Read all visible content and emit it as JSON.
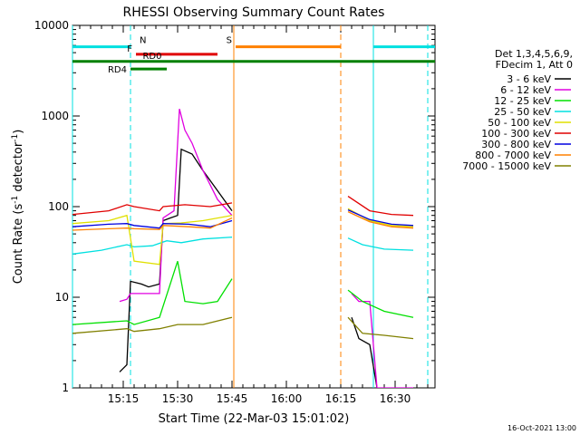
{
  "chart_data": {
    "type": "line",
    "title": "RHESSI Observing Summary Count Rates",
    "xlabel": "Start Time (22-Mar-03 15:01:02)",
    "ylabel_main": "Count Rate (s",
    "ylabel_sup1": "-1",
    "ylabel_mid": " detector",
    "ylabel_sup2": "-1",
    "ylabel_end": ")",
    "yscale": "log",
    "ylim": [
      1,
      10000
    ],
    "xlim_minutes": [
      0,
      100
    ],
    "x_ticks": [
      {
        "label": "15:15",
        "min": 14
      },
      {
        "label": "15:30",
        "min": 29
      },
      {
        "label": "15:45",
        "min": 44
      },
      {
        "label": "16:00",
        "min": 59
      },
      {
        "label": "16:15",
        "min": 74
      },
      {
        "label": "16:30",
        "min": 89
      }
    ],
    "y_ticks": [
      {
        "label": "1",
        "value": 1
      },
      {
        "label": "10",
        "value": 10
      },
      {
        "label": "100",
        "value": 100
      },
      {
        "label": "1000",
        "value": 1000
      },
      {
        "label": "10000",
        "value": 10000
      }
    ],
    "legend_header": [
      "Det 1,3,4,5,6,9,",
      "FDecim 1, Att 0"
    ],
    "legend_placement": "right",
    "series": [
      {
        "name": "3 - 6 keV",
        "color": "#000000",
        "segments": [
          [
            [
              13,
              1.5
            ],
            [
              15,
              1.8
            ],
            [
              16,
              15
            ],
            [
              19,
              14
            ],
            [
              21,
              13
            ],
            [
              24,
              14
            ],
            [
              25,
              70
            ],
            [
              27,
              75
            ],
            [
              29,
              80
            ],
            [
              30,
              430
            ],
            [
              33,
              380
            ],
            [
              36,
              250
            ],
            [
              40,
              150
            ],
            [
              44,
              90
            ]
          ],
          [
            [
              77,
              6
            ],
            [
              79,
              3.5
            ],
            [
              82,
              3
            ],
            [
              84,
              1
            ]
          ]
        ]
      },
      {
        "name": "6 - 12 keV",
        "color": "#e000e0",
        "segments": [
          [
            [
              13,
              9
            ],
            [
              15,
              9.5
            ],
            [
              16,
              11
            ],
            [
              24,
              11
            ],
            [
              25,
              75
            ],
            [
              28,
              90
            ],
            [
              29.5,
              1200
            ],
            [
              31,
              700
            ],
            [
              33,
              500
            ],
            [
              36,
              250
            ],
            [
              40,
              120
            ],
            [
              44,
              80
            ]
          ],
          [
            [
              77,
              11
            ],
            [
              79,
              9
            ],
            [
              82,
              9
            ],
            [
              84,
              1
            ],
            [
              94,
              1
            ]
          ]
        ]
      },
      {
        "name": "12 - 25 keV",
        "color": "#00e000",
        "segments": [
          [
            [
              0,
              5
            ],
            [
              15,
              5.5
            ],
            [
              17,
              5
            ],
            [
              24,
              6
            ],
            [
              29,
              25
            ],
            [
              31,
              9
            ],
            [
              36,
              8.5
            ],
            [
              40,
              9
            ],
            [
              44,
              16
            ]
          ],
          [
            [
              76,
              12
            ],
            [
              80,
              9
            ],
            [
              86,
              7
            ],
            [
              94,
              6
            ]
          ]
        ]
      },
      {
        "name": "25 - 50 keV",
        "color": "#00e0e0",
        "segments": [
          [
            [
              0,
              30
            ],
            [
              8,
              33
            ],
            [
              15,
              38
            ],
            [
              17,
              36
            ],
            [
              22,
              37
            ],
            [
              26,
              42
            ],
            [
              30,
              40
            ],
            [
              36,
              44
            ],
            [
              44,
              46
            ]
          ],
          [
            [
              76,
              45
            ],
            [
              80,
              38
            ],
            [
              86,
              34
            ],
            [
              94,
              33
            ]
          ]
        ]
      },
      {
        "name": "50 - 100 keV",
        "color": "#e0e000",
        "segments": [
          [
            [
              0,
              65
            ],
            [
              10,
              70
            ],
            [
              15,
              80
            ],
            [
              17,
              25
            ],
            [
              24,
              23
            ],
            [
              25,
              65
            ],
            [
              30,
              66
            ],
            [
              36,
              70
            ],
            [
              44,
              80
            ]
          ],
          [
            [
              76,
              95
            ],
            [
              82,
              70
            ],
            [
              88,
              62
            ],
            [
              94,
              60
            ]
          ]
        ]
      },
      {
        "name": "100 - 300 keV",
        "color": "#e00000",
        "segments": [
          [
            [
              0,
              82
            ],
            [
              10,
              90
            ],
            [
              15,
              105
            ],
            [
              17,
              100
            ],
            [
              24,
              90
            ],
            [
              25,
              100
            ],
            [
              31,
              105
            ],
            [
              38,
              100
            ],
            [
              44,
              110
            ]
          ],
          [
            [
              76,
              130
            ],
            [
              82,
              90
            ],
            [
              88,
              82
            ],
            [
              94,
              80
            ]
          ]
        ]
      },
      {
        "name": "300 - 800 keV",
        "color": "#0000e0",
        "segments": [
          [
            [
              0,
              60
            ],
            [
              10,
              64
            ],
            [
              15,
              65
            ],
            [
              17,
              62
            ],
            [
              24,
              58
            ],
            [
              25,
              65
            ],
            [
              32,
              64
            ],
            [
              38,
              60
            ],
            [
              44,
              70
            ]
          ],
          [
            [
              76,
              92
            ],
            [
              82,
              72
            ],
            [
              88,
              64
            ],
            [
              94,
              62
            ]
          ]
        ]
      },
      {
        "name": "800 - 7000 keV",
        "color": "#ff8000",
        "segments": [
          [
            [
              0,
              55
            ],
            [
              10,
              57
            ],
            [
              15,
              58
            ],
            [
              17,
              57
            ],
            [
              24,
              56
            ],
            [
              25,
              62
            ],
            [
              32,
              60
            ],
            [
              38,
              58
            ],
            [
              44,
              75
            ]
          ],
          [
            [
              76,
              88
            ],
            [
              82,
              68
            ],
            [
              88,
              60
            ],
            [
              94,
              58
            ]
          ]
        ]
      },
      {
        "name": "7000 - 15000 keV",
        "color": "#808000",
        "segments": [
          [
            [
              0,
              4
            ],
            [
              15,
              4.5
            ],
            [
              17,
              4.2
            ],
            [
              24,
              4.5
            ],
            [
              29,
              5
            ],
            [
              36,
              5
            ],
            [
              44,
              6
            ]
          ],
          [
            [
              76,
              6
            ],
            [
              80,
              4
            ],
            [
              86,
              3.8
            ],
            [
              94,
              3.5
            ]
          ]
        ]
      }
    ],
    "state_bars": [
      {
        "label": "N",
        "color": "#00e0e0",
        "y": 5800,
        "segments": [
          [
            0,
            16
          ],
          [
            83,
            100
          ]
        ]
      },
      {
        "label": "F",
        "color": "#e00000",
        "y": 4800,
        "segments": [
          [
            17.5,
            40
          ]
        ]
      },
      {
        "label": "S",
        "color": "#ff8000",
        "y": 5800,
        "segments": [
          [
            45,
            74
          ]
        ]
      },
      {
        "label": "RD0",
        "color": "#008000",
        "y": 4000,
        "segments": [
          [
            0,
            100
          ]
        ]
      },
      {
        "label": "RD4",
        "color": "#008000",
        "y": 3300,
        "segments": [
          [
            16,
            26
          ]
        ]
      }
    ],
    "vlines": [
      {
        "min": 0,
        "color": "#00e0e0",
        "style": "solid"
      },
      {
        "min": 16,
        "color": "#00e0e0",
        "style": "dash"
      },
      {
        "min": 44.5,
        "color": "#ff8000",
        "style": "solid"
      },
      {
        "min": 74,
        "color": "#ff8000",
        "style": "dash"
      },
      {
        "min": 83,
        "color": "#00e0e0",
        "style": "solid"
      },
      {
        "min": 98,
        "color": "#00e0e0",
        "style": "dash"
      }
    ]
  },
  "timestamp": "16-Oct-2021 13:00"
}
